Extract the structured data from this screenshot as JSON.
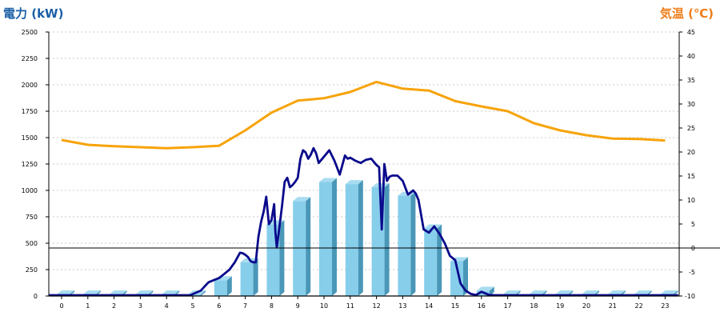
{
  "chart_data": {
    "type": "bar+line",
    "y_left_label": "電力 (kW)",
    "y_right_label": "気温 (℃)",
    "colors": {
      "left_label": "#1a5fa6",
      "right_label": "#ef7d1a",
      "bar_front": "#87ceeb",
      "bar_side": "#4a97b8",
      "bar_top": "#a8dcf0",
      "power_line": "#0a0a8c",
      "temp_line": "#f7a30a",
      "grid": "#c8c8c8"
    },
    "x_ticks": [
      "0",
      "1",
      "2",
      "3",
      "4",
      "5",
      "6",
      "7",
      "8",
      "9",
      "10",
      "11",
      "12",
      "13",
      "14",
      "15",
      "16",
      "17",
      "18",
      "19",
      "20",
      "21",
      "22",
      "23"
    ],
    "y_left_ticks": [
      "0",
      "250",
      "500",
      "750",
      "1000",
      "1250",
      "1500",
      "1750",
      "2000",
      "2250",
      "2500"
    ],
    "y_right_ticks": [
      "-10",
      "-5",
      "0",
      "5",
      "10",
      "15",
      "20",
      "25",
      "30",
      "35",
      "40",
      "45"
    ],
    "ylim_left": [
      0,
      2500
    ],
    "ylim_right": [
      -10,
      45
    ],
    "grid": true,
    "hourly_power_bars": {
      "x": [
        0,
        1,
        2,
        3,
        4,
        5,
        6,
        7,
        8,
        9,
        10,
        11,
        12,
        13,
        14,
        15,
        16,
        17,
        18,
        19,
        20,
        21,
        22,
        23
      ],
      "values": [
        0,
        0,
        0,
        0,
        0,
        0,
        150,
        320,
        680,
        900,
        1080,
        1060,
        1030,
        950,
        640,
        330,
        50,
        0,
        0,
        0,
        0,
        0,
        0,
        0
      ]
    },
    "power_line": {
      "x": [
        4.9,
        5.3,
        5.6,
        5.8,
        6.0,
        6.2,
        6.4,
        6.6,
        6.8,
        6.9,
        7.0,
        7.1,
        7.2,
        7.3,
        7.4,
        7.5,
        7.6,
        7.7,
        7.8,
        7.9,
        8.0,
        8.1,
        8.15,
        8.2,
        8.3,
        8.4,
        8.5,
        8.6,
        8.7,
        8.8,
        8.9,
        9.0,
        9.1,
        9.2,
        9.3,
        9.4,
        9.5,
        9.6,
        9.7,
        9.8,
        10.0,
        10.2,
        10.4,
        10.6,
        10.8,
        10.9,
        11.0,
        11.2,
        11.4,
        11.6,
        11.8,
        12.0,
        12.1,
        12.2,
        12.3,
        12.4,
        12.5,
        12.6,
        12.8,
        13.0,
        13.2,
        13.4,
        13.5,
        13.6,
        13.8,
        14.0,
        14.2,
        14.4,
        14.6,
        14.8,
        15.0,
        15.2,
        15.4,
        15.6,
        15.8,
        16.0,
        16.2,
        16.3,
        16.5,
        16.7,
        23.5
      ],
      "values": [
        0,
        50,
        130,
        150,
        170,
        210,
        250,
        320,
        410,
        405,
        390,
        370,
        330,
        320,
        320,
        560,
        700,
        800,
        940,
        680,
        720,
        870,
        600,
        460,
        650,
        850,
        1080,
        1120,
        1030,
        1050,
        1080,
        1120,
        1300,
        1380,
        1360,
        1300,
        1340,
        1400,
        1350,
        1260,
        1320,
        1380,
        1280,
        1150,
        1330,
        1300,
        1310,
        1280,
        1260,
        1290,
        1300,
        1240,
        1220,
        630,
        1250,
        1090,
        1130,
        1140,
        1140,
        1090,
        960,
        1000,
        970,
        910,
        630,
        600,
        660,
        590,
        500,
        380,
        340,
        120,
        50,
        20,
        10,
        40,
        20,
        10,
        0,
        0,
        0
      ]
    },
    "temperature_line": {
      "x": [
        0,
        1,
        2,
        3,
        4,
        5,
        6,
        7,
        8,
        9,
        10,
        11,
        12,
        13,
        14,
        15,
        16,
        17,
        18,
        19,
        20,
        21,
        22,
        23
      ],
      "values": [
        22.5,
        21.5,
        21.2,
        21.0,
        20.8,
        21.0,
        21.3,
        24.5,
        28.2,
        30.7,
        31.2,
        32.5,
        34.6,
        33.2,
        32.8,
        30.6,
        29.5,
        28.5,
        26.0,
        24.5,
        23.5,
        22.8,
        22.7,
        22.4
      ]
    }
  }
}
